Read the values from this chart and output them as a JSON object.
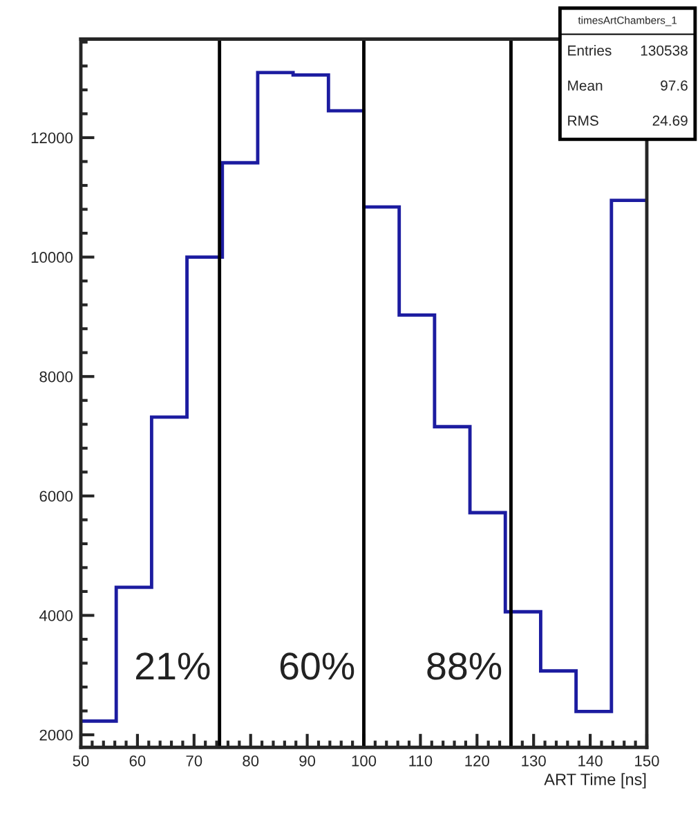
{
  "chart_data": {
    "type": "histogram",
    "xlabel": "ART Time [ns]",
    "bins": [
      50,
      56.25,
      62.5,
      68.75,
      75,
      81.25,
      87.5,
      93.75,
      100,
      106.25,
      112.5,
      118.75,
      125,
      131.25,
      137.5,
      143.75,
      150
    ],
    "values": [
      2230,
      4470,
      7320,
      10000,
      11580,
      13090,
      13050,
      12450,
      10840,
      9030,
      7160,
      5720,
      4060,
      3070,
      2390,
      10950
    ],
    "color": "#1c1ca0",
    "xlim": [
      50,
      150
    ],
    "xticks": [
      50,
      60,
      70,
      80,
      90,
      100,
      110,
      120,
      130,
      140,
      150
    ],
    "ylim": [
      1790,
      13650
    ],
    "yticks": [
      2000,
      4000,
      6000,
      8000,
      10000,
      12000
    ],
    "grid": false,
    "ref_lines": [
      {
        "axis": "x",
        "value": 74.5,
        "color": "#000000"
      },
      {
        "axis": "x",
        "value": 100,
        "color": "#000000"
      },
      {
        "axis": "x",
        "value": 126,
        "color": "#000000"
      }
    ],
    "annotations": [
      "timesArtChambers_1",
      "Entries 130538",
      "Mean 97.6",
      "RMS 24.69",
      "21%",
      "60%",
      "88%"
    ]
  }
}
